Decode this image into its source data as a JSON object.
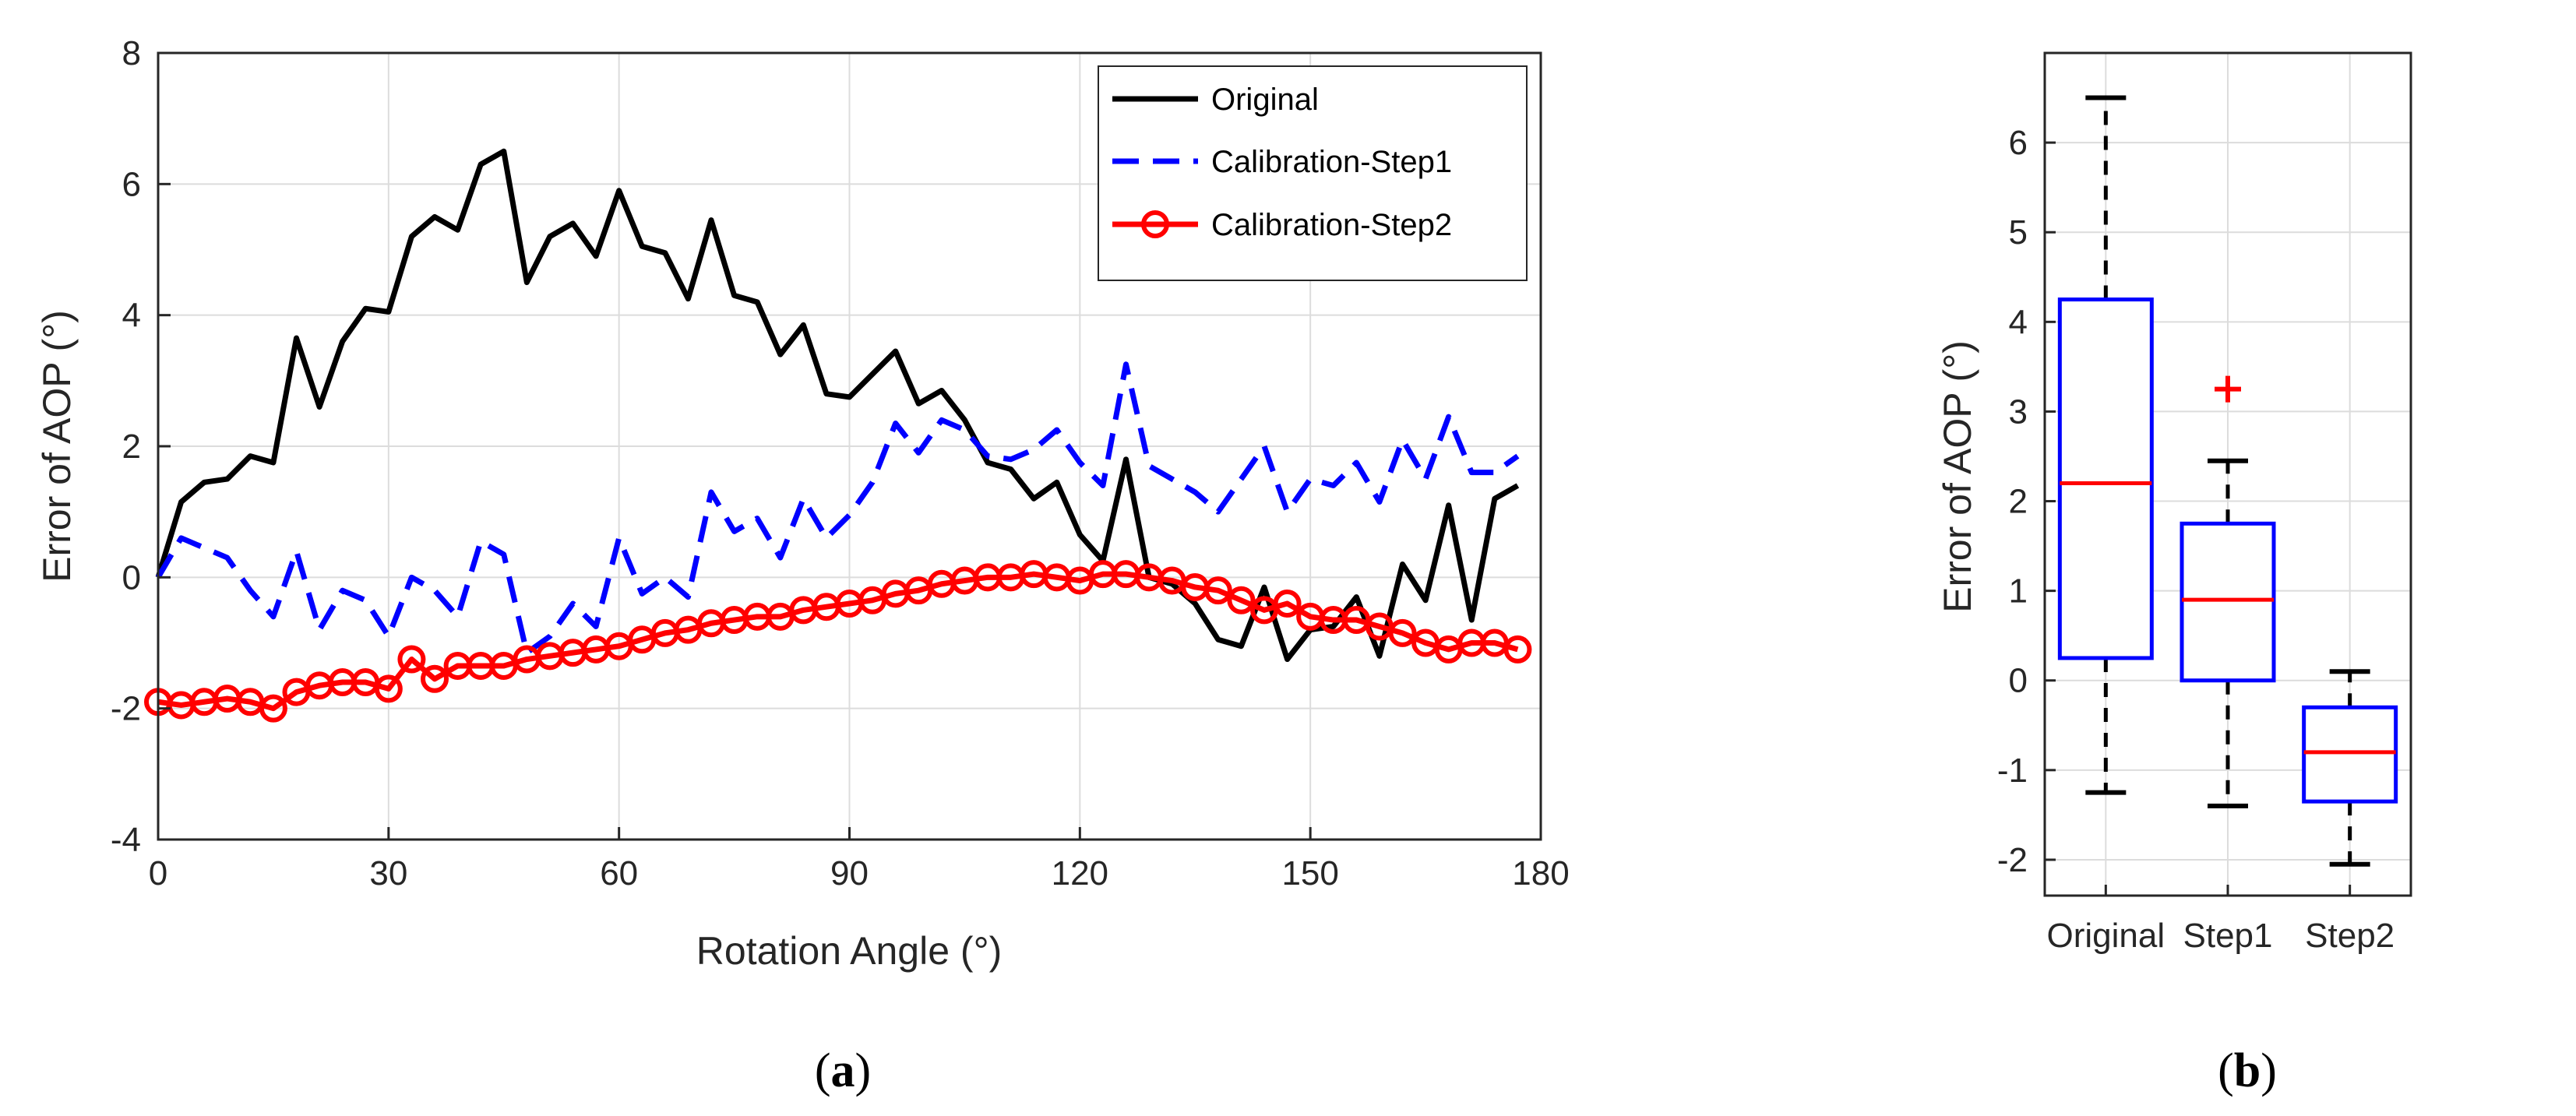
{
  "panel_a": {
    "label_open": "(",
    "label_letter": "a",
    "label_close": ")",
    "chart_data": {
      "type": "line",
      "title": "",
      "xlabel": "Rotation Angle (°)",
      "ylabel": "Error of AOP (°)",
      "xlim": [
        0,
        180
      ],
      "ylim": [
        -4,
        8
      ],
      "xticks": [
        "0",
        "30",
        "60",
        "90",
        "120",
        "150",
        "180"
      ],
      "yticks": [
        "-4",
        "-2",
        "0",
        "2",
        "4",
        "6",
        "8"
      ],
      "grid": true,
      "legend_position": "top-right",
      "x": [
        0,
        3,
        6,
        9,
        12,
        15,
        18,
        21,
        24,
        27,
        30,
        33,
        36,
        39,
        42,
        45,
        48,
        51,
        54,
        57,
        60,
        63,
        66,
        69,
        72,
        75,
        78,
        81,
        84,
        87,
        90,
        93,
        96,
        99,
        102,
        105,
        108,
        111,
        114,
        117,
        120,
        123,
        126,
        129,
        132,
        135,
        138,
        141,
        144,
        147,
        150,
        153,
        156,
        159,
        162,
        165,
        168,
        171,
        174,
        177
      ],
      "series": [
        {
          "name": "Original",
          "color": "#000000",
          "style": "solid",
          "values": [
            0,
            1.15,
            1.45,
            1.5,
            1.85,
            1.75,
            3.65,
            2.6,
            3.6,
            4.1,
            4.05,
            5.2,
            5.5,
            5.3,
            6.3,
            6.5,
            4.5,
            5.2,
            5.4,
            4.9,
            5.9,
            5.05,
            4.95,
            4.25,
            5.45,
            4.3,
            4.2,
            3.4,
            3.85,
            2.8,
            2.75,
            3.1,
            3.45,
            2.65,
            2.85,
            2.4,
            1.75,
            1.65,
            1.2,
            1.45,
            0.65,
            0.25,
            1.8,
            0,
            -0.1,
            -0.4,
            -0.95,
            -1.05,
            -0.15,
            -1.25,
            -0.8,
            -0.75,
            -0.3,
            -1.2,
            0.2,
            -0.35,
            1.1,
            -0.65,
            1.2,
            1.4
          ]
        },
        {
          "name": "Calibration-Step1",
          "color": "#0000ff",
          "style": "dashed",
          "values": [
            0,
            0.6,
            0.45,
            0.3,
            -0.2,
            -0.6,
            0.4,
            -0.8,
            -0.2,
            -0.35,
            -0.9,
            0,
            -0.2,
            -0.6,
            0.55,
            0.35,
            -1.15,
            -0.9,
            -0.4,
            -0.75,
            0.6,
            -0.25,
            0,
            -0.3,
            1.3,
            0.7,
            0.9,
            0.3,
            1.2,
            0.6,
            0.95,
            1.45,
            2.35,
            1.9,
            2.4,
            2.25,
            1.85,
            1.8,
            1.95,
            2.25,
            1.75,
            1.4,
            3.25,
            1.7,
            1.5,
            1.3,
            1,
            1.5,
            2,
            1,
            1.5,
            1.4,
            1.75,
            1.15,
            2.1,
            1.5,
            2.45,
            1.6,
            1.6,
            1.85
          ]
        },
        {
          "name": "Calibration-Step2",
          "color": "#ff0000",
          "style": "solid-marker",
          "values": [
            -1.9,
            -1.95,
            -1.9,
            -1.85,
            -1.9,
            -2,
            -1.75,
            -1.65,
            -1.6,
            -1.6,
            -1.7,
            -1.25,
            -1.55,
            -1.35,
            -1.35,
            -1.35,
            -1.25,
            -1.2,
            -1.15,
            -1.1,
            -1.05,
            -0.95,
            -0.85,
            -0.8,
            -0.7,
            -0.65,
            -0.6,
            -0.6,
            -0.5,
            -0.45,
            -0.4,
            -0.35,
            -0.25,
            -0.2,
            -0.1,
            -0.05,
            0,
            0,
            0.05,
            0,
            -0.05,
            0.05,
            0.05,
            0,
            -0.05,
            -0.15,
            -0.2,
            -0.35,
            -0.5,
            -0.4,
            -0.6,
            -0.65,
            -0.65,
            -0.75,
            -0.85,
            -1,
            -1.1,
            -1,
            -1,
            -1.1
          ]
        }
      ]
    }
  },
  "panel_b": {
    "label_open": "(",
    "label_letter": "b",
    "label_close": ")",
    "chart_data": {
      "type": "box",
      "title": "",
      "xlabel": "",
      "ylabel": "Error of AOP (°)",
      "ylim": [
        -2.4,
        7
      ],
      "yticks": [
        "-2",
        "-1",
        "0",
        "1",
        "2",
        "3",
        "4",
        "5",
        "6"
      ],
      "grid": true,
      "categories": [
        "Original",
        "Step1",
        "Step2"
      ],
      "boxes": [
        {
          "name": "Original",
          "min": -1.25,
          "q1": 0.25,
          "median": 2.2,
          "q3": 4.25,
          "max": 6.5,
          "outliers": []
        },
        {
          "name": "Step1",
          "min": -1.4,
          "q1": 0,
          "median": 0.9,
          "q3": 1.75,
          "max": 2.45,
          "outliers": [
            3.25
          ]
        },
        {
          "name": "Step2",
          "min": -2.05,
          "q1": -1.35,
          "median": -0.8,
          "q3": -0.3,
          "max": 0.1,
          "outliers": []
        }
      ],
      "colors": {
        "box": "#0000ff",
        "median": "#ff0000",
        "whisker": "#000000",
        "outlier": "#ff0000"
      }
    }
  }
}
